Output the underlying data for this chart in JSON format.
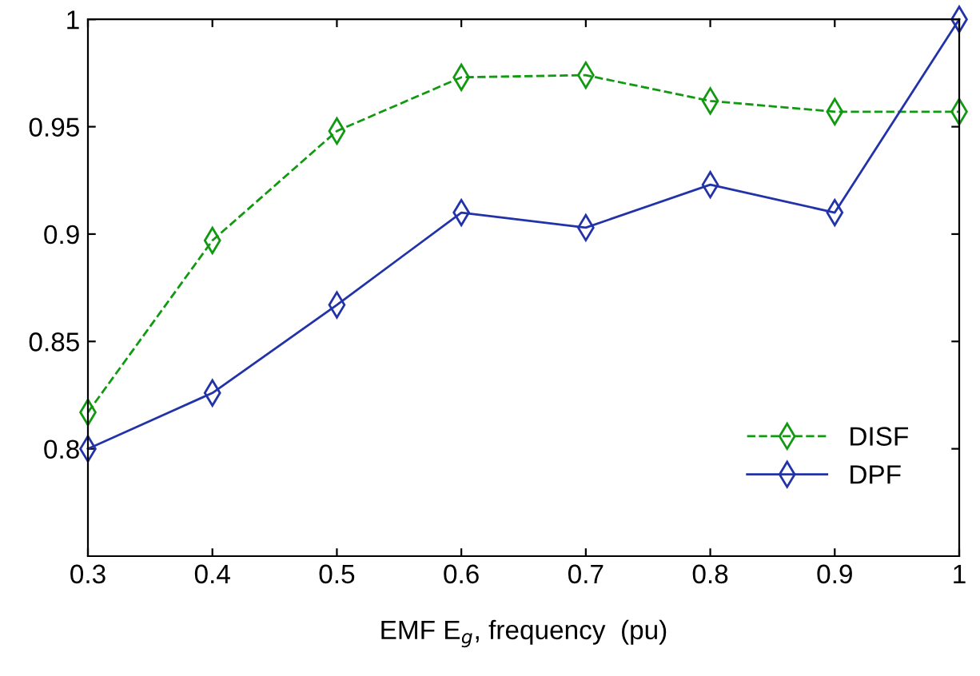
{
  "chart_data": {
    "type": "line",
    "xlabel": "EMF E$_{g}$, frequency  (pu)",
    "x": [
      0.3,
      0.4,
      0.5,
      0.6,
      0.7,
      0.8,
      0.9,
      1.0
    ],
    "series": [
      {
        "name": "DISF",
        "color": "#119911",
        "line_style": "dashed",
        "values": [
          0.817,
          0.897,
          0.948,
          0.973,
          0.974,
          0.962,
          0.957,
          0.957
        ]
      },
      {
        "name": "DPF",
        "color": "#2233aa",
        "line_style": "solid",
        "values": [
          0.8,
          0.826,
          0.867,
          0.91,
          0.903,
          0.923,
          0.91,
          1.0
        ]
      }
    ],
    "marker": "diamond",
    "xlim": [
      0.3,
      1.0
    ],
    "ylim": [
      0.75,
      1.0
    ],
    "xticks": [
      0.3,
      0.4,
      0.5,
      0.6,
      0.7,
      0.8,
      0.9,
      {
        "value": 1.0,
        "label": "1"
      }
    ],
    "yticks": [
      0.8,
      0.85,
      0.9,
      0.95,
      {
        "value": 1.0,
        "label": "1"
      }
    ],
    "grid": false,
    "legend": "bottom right"
  }
}
